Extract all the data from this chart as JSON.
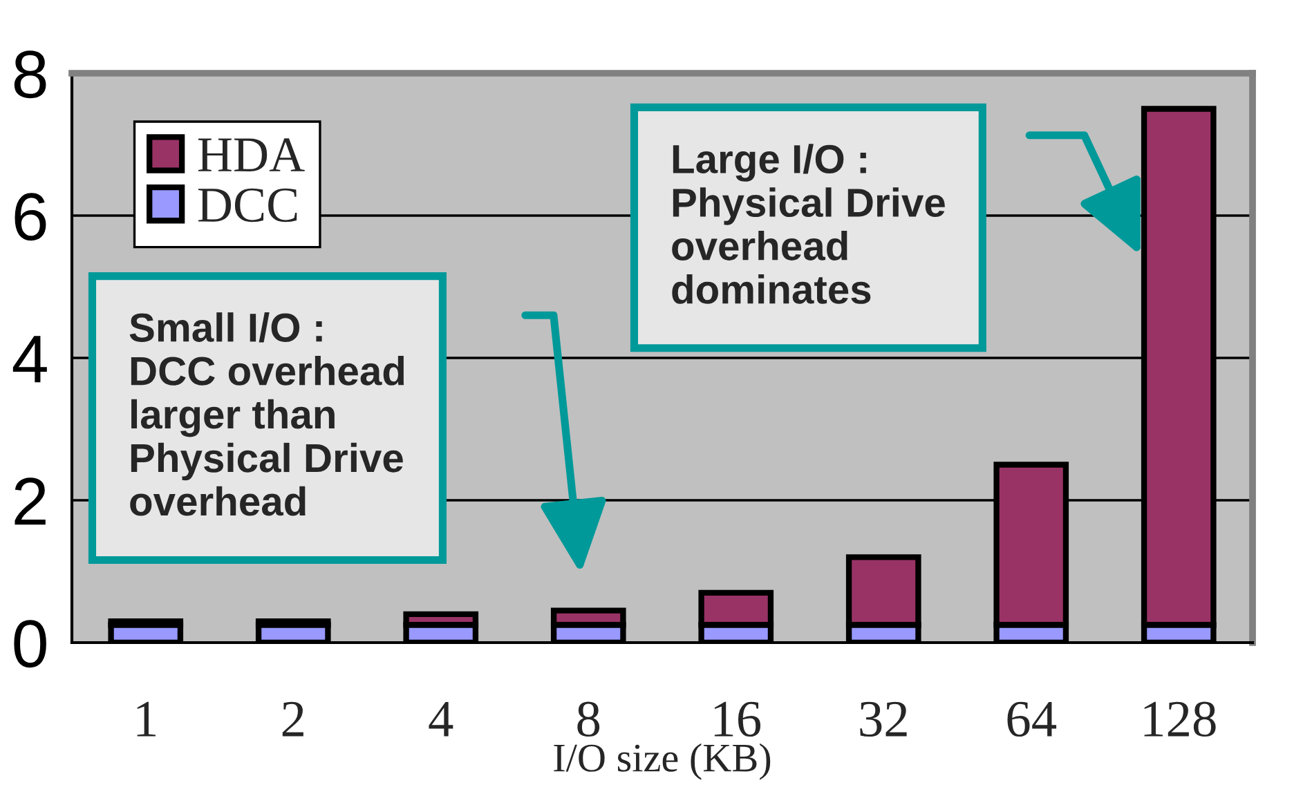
{
  "chart_data": {
    "type": "bar",
    "stacked": true,
    "categories": [
      "1",
      "2",
      "4",
      "8",
      "16",
      "32",
      "64",
      "128"
    ],
    "series": [
      {
        "name": "DCC",
        "color": "#9999ff",
        "values": [
          0.25,
          0.25,
          0.25,
          0.25,
          0.25,
          0.25,
          0.25,
          0.25
        ]
      },
      {
        "name": "HDA",
        "color": "#993366",
        "values": [
          0.05,
          0.05,
          0.15,
          0.2,
          0.45,
          0.95,
          2.25,
          7.25
        ]
      }
    ],
    "xlabel": "I/O size (KB)",
    "ylim": [
      0,
      8
    ],
    "yticks": [
      0,
      2,
      4,
      6,
      8
    ],
    "grid": "y",
    "legend": "top left",
    "annotations": [
      "Small I/O :\nDCC overhead\nlarger than\nPhysical Drive\noverhead",
      "Large I/O :\nPhysical Drive\noverhead\ndominates"
    ]
  }
}
